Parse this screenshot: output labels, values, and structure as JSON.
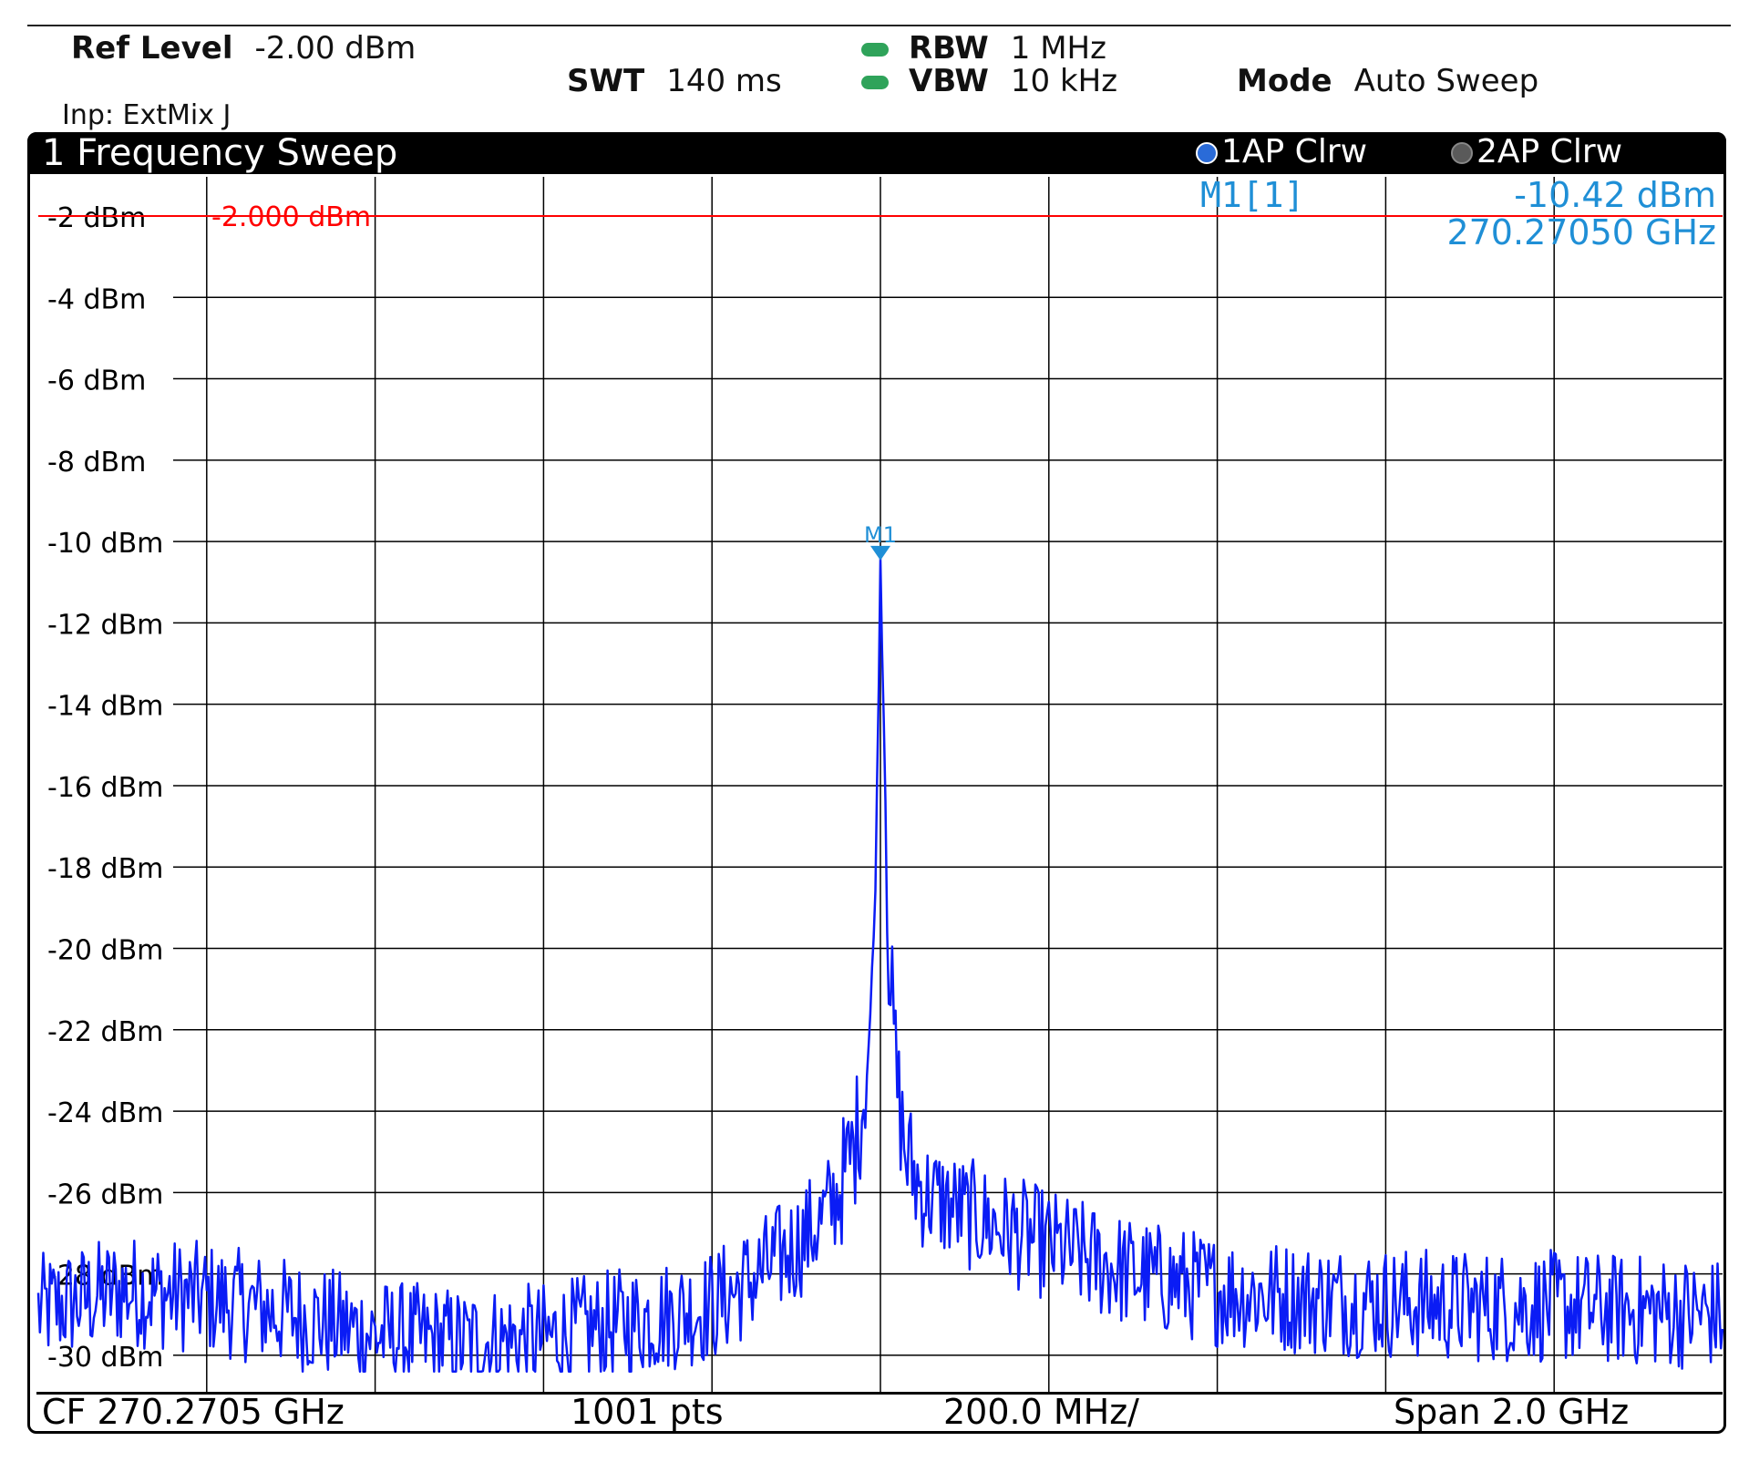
{
  "header": {
    "ref_level_label": "Ref Level",
    "ref_level_value": "-2.00 dBm",
    "rbw_label": "RBW",
    "rbw_value": "1 MHz",
    "swt_label": "SWT",
    "swt_value": "140 ms",
    "vbw_label": "VBW",
    "vbw_value": "10 kHz",
    "mode_label": "Mode",
    "mode_value": "Auto Sweep",
    "input": "Inp: ExtMix J"
  },
  "window": {
    "title": "1 Frequency Sweep",
    "traces": [
      {
        "label": "1AP Clrw",
        "color": "#2a6bd8"
      },
      {
        "label": "2AP Clrw",
        "color": "#5a5a5a"
      }
    ]
  },
  "marker": {
    "name": "M1[1]",
    "flag": "M1",
    "level": "-10.42 dBm",
    "frequency": "270.27050 GHz",
    "level_value": -10.42,
    "color": "#1f8fd6"
  },
  "ref_line": {
    "label": "-2.000 dBm",
    "value": -2.0,
    "color": "#ff0000"
  },
  "footer": {
    "center_freq": "CF 270.2705 GHz",
    "points": "1001 pts",
    "per_div": "200.0 MHz/",
    "span": "Span 2.0 GHz"
  },
  "colors": {
    "trace": "#0a1cf5",
    "grid": "#000000",
    "marker": "#1f8fd6",
    "ref": "#ff0000"
  },
  "chart_data": {
    "type": "line",
    "title": "1 Frequency Sweep",
    "xlabel": "",
    "ylabel": "",
    "center_freq_ghz": 270.2705,
    "span_ghz": 2.0,
    "xlim": [
      269.2705,
      271.2705
    ],
    "ylim": [
      -30.5,
      0
    ],
    "yticks": [
      -2,
      -4,
      -6,
      -8,
      -10,
      -12,
      -14,
      -16,
      -18,
      -20,
      -22,
      -24,
      -26,
      -28,
      -30
    ],
    "ytick_labels": [
      "-2 dBm",
      "-4 dBm",
      "-6 dBm",
      "-8 dBm",
      "-10 dBm",
      "-12 dBm",
      "-14 dBm",
      "-16 dBm",
      "-18 dBm",
      "-20 dBm",
      "-22 dBm",
      "-24 dBm",
      "-26 dBm",
      "-28 dBm",
      "-30 dBm"
    ],
    "grid": true,
    "series": [
      {
        "x_ghz": [
          269.2705,
          269.3705,
          269.4705,
          269.5705,
          269.6705,
          269.7705,
          269.8705,
          269.9705,
          270.0705,
          270.1205,
          270.1705,
          270.2005,
          270.2205,
          270.2405,
          270.2505,
          270.2605,
          270.2655,
          270.2705,
          270.2755,
          270.2805,
          270.2905,
          270.3005,
          270.3205,
          270.3705,
          270.4205,
          270.4705,
          270.5705,
          270.6705,
          270.7705,
          270.8705,
          270.9705,
          271.0705,
          271.1705,
          271.2705
        ],
        "level_dbm": [
          -28.9,
          -28.4,
          -28.6,
          -29.0,
          -29.5,
          -29.7,
          -29.6,
          -29.2,
          -28.8,
          -28.1,
          -27.3,
          -26.7,
          -26.0,
          -24.8,
          -23.6,
          -21.4,
          -17.5,
          -10.42,
          -15.3,
          -20.2,
          -23.4,
          -25.1,
          -26.0,
          -26.5,
          -26.9,
          -27.3,
          -28.0,
          -28.4,
          -28.6,
          -28.7,
          -28.8,
          -28.8,
          -28.9,
          -29.0
        ]
      }
    ]
  }
}
